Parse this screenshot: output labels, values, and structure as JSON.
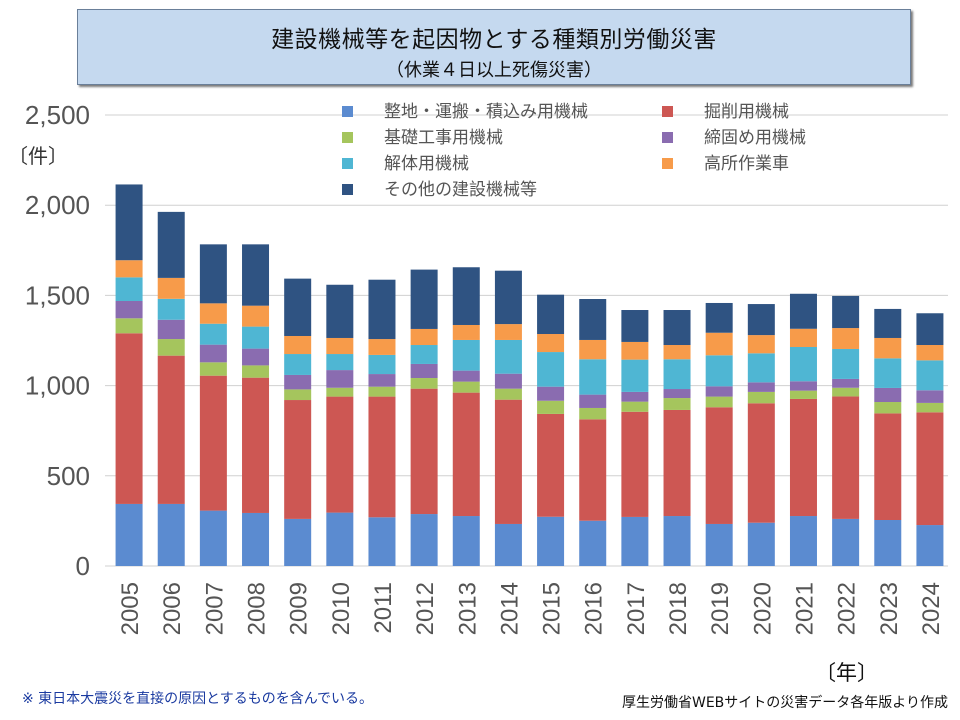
{
  "title": {
    "main": "建設機械等を起因物とする種類別労働災害",
    "sub": "（休業４日以上死傷災害）"
  },
  "footer": {
    "note": "※ 東日本大震災を直接の原因とするものを含んでいる。",
    "source": "厚生労働省WEBサイトの災害データ各年版より作成"
  },
  "chart_data": {
    "type": "bar",
    "stacked": true,
    "title": "建設機械等を起因物とする種類別労働災害（休業４日以上死傷災害）",
    "xlabel": "〔年〕",
    "ylabel": "〔件〕",
    "ylim": [
      0,
      2500
    ],
    "yticks": [
      0,
      500,
      1000,
      1500,
      2000,
      2500
    ],
    "ytick_labels": [
      "0",
      "500",
      "1,000",
      "1,500",
      "2,000",
      "2,500"
    ],
    "grid": true,
    "legend_position": "top-right",
    "categories": [
      "2005",
      "2006",
      "2007",
      "2008",
      "2009",
      "2010",
      "2011",
      "2012",
      "2013",
      "2014",
      "2015",
      "2016",
      "2017",
      "2018",
      "2019",
      "2020",
      "2021",
      "2022",
      "2023",
      "2024"
    ],
    "series": [
      {
        "name": "整地・運搬・積込み用機械",
        "color": "#5b8bd0",
        "values": [
          344,
          344,
          307,
          294,
          261,
          296,
          270,
          288,
          277,
          233,
          273,
          251,
          272,
          277,
          233,
          240,
          277,
          261,
          255,
          227
        ]
      },
      {
        "name": "掘削用機械",
        "color": "#cd5753",
        "values": [
          946,
          822,
          748,
          750,
          659,
          643,
          669,
          695,
          684,
          689,
          570,
          562,
          583,
          588,
          647,
          662,
          649,
          679,
          591,
          625
        ]
      },
      {
        "name": "基礎工事用機械",
        "color": "#a5c55d",
        "values": [
          83,
          92,
          74,
          68,
          59,
          49,
          55,
          59,
          61,
          61,
          73,
          63,
          56,
          66,
          59,
          63,
          46,
          48,
          63,
          52
        ]
      },
      {
        "name": "締固め用機械",
        "color": "#8a6cb0",
        "values": [
          96,
          107,
          98,
          93,
          80,
          98,
          70,
          78,
          61,
          83,
          78,
          74,
          54,
          50,
          57,
          53,
          52,
          49,
          78,
          70
        ]
      },
      {
        "name": "解体用機械",
        "color": "#4fb6d3",
        "values": [
          131,
          116,
          116,
          122,
          116,
          89,
          106,
          105,
          170,
          187,
          192,
          196,
          179,
          165,
          172,
          161,
          190,
          166,
          164,
          166
        ]
      },
      {
        "name": "高所作業車",
        "color": "#f79b4a",
        "values": [
          95,
          116,
          113,
          116,
          100,
          89,
          88,
          89,
          83,
          88,
          100,
          107,
          98,
          79,
          125,
          101,
          101,
          116,
          113,
          85
        ]
      },
      {
        "name": "その他の建設機械等",
        "color": "#2f5382",
        "values": [
          420,
          366,
          327,
          340,
          318,
          295,
          329,
          329,
          320,
          296,
          218,
          227,
          177,
          194,
          165,
          172,
          194,
          178,
          161,
          176
        ]
      }
    ]
  }
}
